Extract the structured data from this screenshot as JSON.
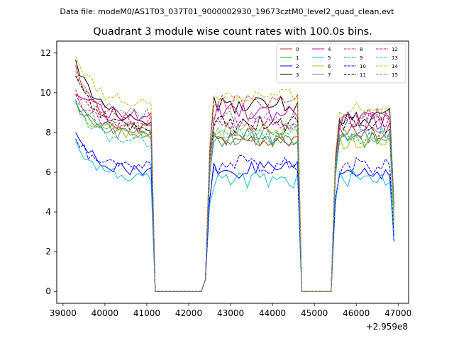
{
  "suptitle": "Data file: modeM0/AS1T03_037T01_9000002930_19673cztM0_level2_quad_clean.evt",
  "chart_data": {
    "type": "line",
    "title": "Quadrant 3 module wise count rates with 100.0s bins.",
    "xlabel": "",
    "ylabel": "",
    "x_offset_label": "+2.959e8",
    "xlim": [
      38850,
      47250
    ],
    "ylim": [
      -0.6,
      12.6
    ],
    "xticks": [
      39000,
      40000,
      41000,
      42000,
      43000,
      44000,
      45000,
      46000,
      47000
    ],
    "xtick_labels": [
      "39000",
      "40000",
      "41000",
      "42000",
      "43000",
      "44000",
      "45000",
      "46000",
      "47000"
    ],
    "yticks": [
      0,
      2,
      4,
      6,
      8,
      10,
      12
    ],
    "ytick_labels": [
      "0",
      "2",
      "4",
      "6",
      "8",
      "10",
      "12"
    ],
    "legend_position": "top-right",
    "segments": [
      {
        "start": 39300,
        "end": 41100
      },
      {
        "start": 42500,
        "end": 44600
      },
      {
        "start": 45500,
        "end": 46800
      }
    ],
    "gaps": [
      {
        "zero_from": 41200,
        "zero_to": 42300
      },
      {
        "zero_from": 44700,
        "zero_to": 45400
      }
    ],
    "series": [
      {
        "name": "0",
        "color": "#d62728",
        "dash": "solid",
        "start_value": 11.5,
        "levels": [
          8.1,
          7.6,
          8.1
        ]
      },
      {
        "name": "1",
        "color": "#2ca02c",
        "dash": "solid",
        "start_value": 9.5,
        "levels": [
          8.0,
          7.7,
          7.6
        ]
      },
      {
        "name": "2",
        "color": "#0000ff",
        "dash": "solid",
        "start_value": 8.2,
        "levels": [
          6.0,
          6.1,
          6.0
        ]
      },
      {
        "name": "3",
        "color": "#000000",
        "dash": "solid",
        "start_value": 11.6,
        "levels": [
          8.6,
          9.4,
          8.8
        ]
      },
      {
        "name": "4",
        "color": "#c000c0",
        "dash": "solid",
        "start_value": 10.2,
        "levels": [
          8.8,
          9.0,
          8.6
        ]
      },
      {
        "name": "5",
        "color": "#17becf",
        "dash": "solid",
        "start_value": 7.6,
        "levels": [
          5.7,
          5.6,
          5.7
        ]
      },
      {
        "name": "6",
        "color": "#bcbd22",
        "dash": "solid",
        "start_value": 9.3,
        "levels": [
          7.9,
          8.1,
          7.6
        ]
      },
      {
        "name": "7",
        "color": "#7f7f7f",
        "dash": "solid",
        "start_value": 9.6,
        "levels": [
          7.8,
          7.8,
          7.8
        ]
      },
      {
        "name": "8",
        "color": "#d62728",
        "dash": "dashed",
        "start_value": 10.0,
        "levels": [
          8.7,
          9.6,
          8.8
        ]
      },
      {
        "name": "9",
        "color": "#2ca02c",
        "dash": "dashed",
        "start_value": 9.8,
        "levels": [
          8.1,
          8.0,
          7.8
        ]
      },
      {
        "name": "10",
        "color": "#0000ff",
        "dash": "dashed",
        "start_value": 7.6,
        "levels": [
          6.3,
          6.4,
          6.3
        ]
      },
      {
        "name": "11",
        "color": "#000000",
        "dash": "dashed",
        "start_value": 11.1,
        "levels": [
          8.2,
          8.4,
          8.4
        ]
      },
      {
        "name": "12",
        "color": "#c000c0",
        "dash": "dashed",
        "start_value": 9.9,
        "levels": [
          8.3,
          8.5,
          8.5
        ]
      },
      {
        "name": "13",
        "color": "#17becf",
        "dash": "dashed",
        "start_value": 9.4,
        "levels": [
          7.5,
          7.9,
          7.9
        ]
      },
      {
        "name": "14",
        "color": "#bcbd22",
        "dash": "dashed",
        "start_value": 11.9,
        "levels": [
          9.4,
          9.8,
          9.2
        ]
      },
      {
        "name": "15",
        "color": "#7f7f7f",
        "dash": "dashed",
        "start_value": 10.9,
        "levels": [
          8.9,
          8.7,
          8.6
        ]
      }
    ]
  }
}
